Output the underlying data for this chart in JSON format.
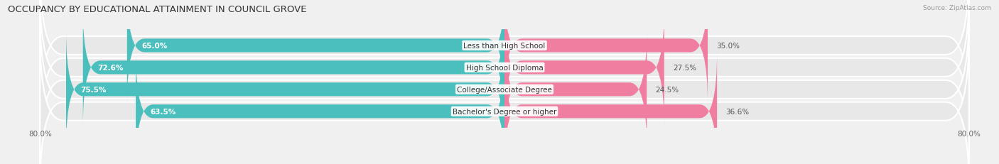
{
  "title": "OCCUPANCY BY EDUCATIONAL ATTAINMENT IN COUNCIL GROVE",
  "source": "Source: ZipAtlas.com",
  "categories": [
    "Less than High School",
    "High School Diploma",
    "College/Associate Degree",
    "Bachelor's Degree or higher"
  ],
  "owner_values": [
    65.0,
    72.6,
    75.5,
    63.5
  ],
  "renter_values": [
    35.0,
    27.5,
    24.5,
    36.6
  ],
  "owner_color": "#4BBFBE",
  "renter_color": "#F07EA0",
  "xlim_left": -80,
  "xlim_right": 80,
  "xtick_labels": [
    "80.0%",
    "80.0%"
  ],
  "background_color": "#f0f0f0",
  "bar_bg_color": "#e8e8e8",
  "title_fontsize": 9.5,
  "label_fontsize": 7.5,
  "value_fontsize": 7.5,
  "source_fontsize": 6.5,
  "bar_height": 0.62,
  "figsize": [
    14.06,
    2.32
  ],
  "dpi": 100
}
